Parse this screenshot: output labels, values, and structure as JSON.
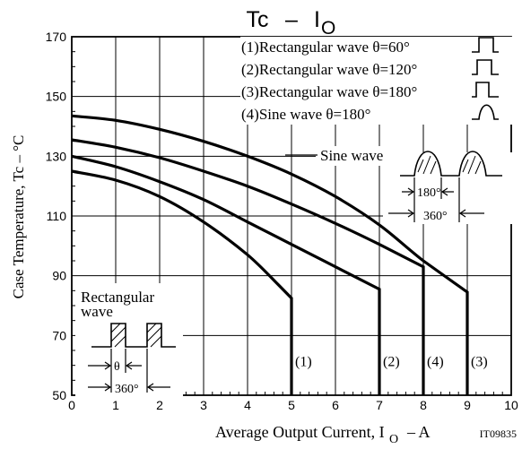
{
  "chart_data": {
    "type": "line",
    "title_main": "Tc",
    "title_dash": "–",
    "title_sym": "I",
    "title_sub": "O",
    "xlabel_pre": "Average Output Current, I",
    "xlabel_sub": "O",
    "xlabel_post": "–  A",
    "ylabel": "Case Temperature, Tc  –  °C",
    "code": "IT09835",
    "xlim": [
      0,
      10
    ],
    "ylim": [
      50,
      170
    ],
    "x_ticks": [
      0,
      1,
      2,
      3,
      4,
      5,
      6,
      7,
      8,
      9,
      10
    ],
    "y_ticks": [
      50,
      70,
      90,
      110,
      130,
      150,
      170
    ],
    "grid": true,
    "legend": [
      {
        "label": "(1)Rectangular wave θ=60°",
        "icon": "rect-pulse-60-icon"
      },
      {
        "label": "(2)Rectangular wave θ=120°",
        "icon": "rect-pulse-120-icon"
      },
      {
        "label": "(3)Rectangular wave θ=180°",
        "icon": "rect-pulse-180-icon"
      },
      {
        "label": "(4)Sine wave θ=180°",
        "icon": "sine-half-wave-icon"
      }
    ],
    "series": [
      {
        "name": "(1)",
        "points": [
          [
            0,
            125
          ],
          [
            1,
            122
          ],
          [
            2,
            116.5
          ],
          [
            3,
            108
          ],
          [
            4,
            97
          ],
          [
            4.7,
            87
          ],
          [
            5,
            82.5
          ],
          [
            5,
            50
          ]
        ],
        "label_at": [
          5,
          60
        ]
      },
      {
        "name": "(2)",
        "points": [
          [
            0,
            130
          ],
          [
            1,
            126.5
          ],
          [
            2,
            121.5
          ],
          [
            3,
            115.5
          ],
          [
            4,
            108
          ],
          [
            5,
            100.5
          ],
          [
            6,
            93
          ],
          [
            7,
            85.5
          ],
          [
            7,
            50
          ]
        ],
        "label_at": [
          7,
          60
        ]
      },
      {
        "name": "(4)",
        "points": [
          [
            0,
            135.5
          ],
          [
            1,
            133
          ],
          [
            2,
            129.5
          ],
          [
            3,
            125
          ],
          [
            4,
            120
          ],
          [
            5,
            114
          ],
          [
            6,
            107.5
          ],
          [
            7,
            100.5
          ],
          [
            8,
            93
          ],
          [
            8,
            50
          ]
        ],
        "label_at": [
          8,
          60
        ]
      },
      {
        "name": "(3)",
        "points": [
          [
            0,
            143.5
          ],
          [
            1,
            142
          ],
          [
            2,
            139
          ],
          [
            3,
            135
          ],
          [
            4,
            130
          ],
          [
            5,
            124
          ],
          [
            6,
            116.5
          ],
          [
            7,
            107
          ],
          [
            8,
            95
          ],
          [
            9,
            84.5
          ],
          [
            9,
            50
          ]
        ],
        "label_at": [
          9,
          60
        ]
      }
    ],
    "annotations": {
      "sine_wave": "Sine wave",
      "sine_angle1": "180°",
      "sine_angle2": "360°",
      "rect_wave_line1": "Rectangular",
      "rect_wave_line2": "wave",
      "rect_angle1": "θ",
      "rect_angle2": "360°"
    }
  }
}
